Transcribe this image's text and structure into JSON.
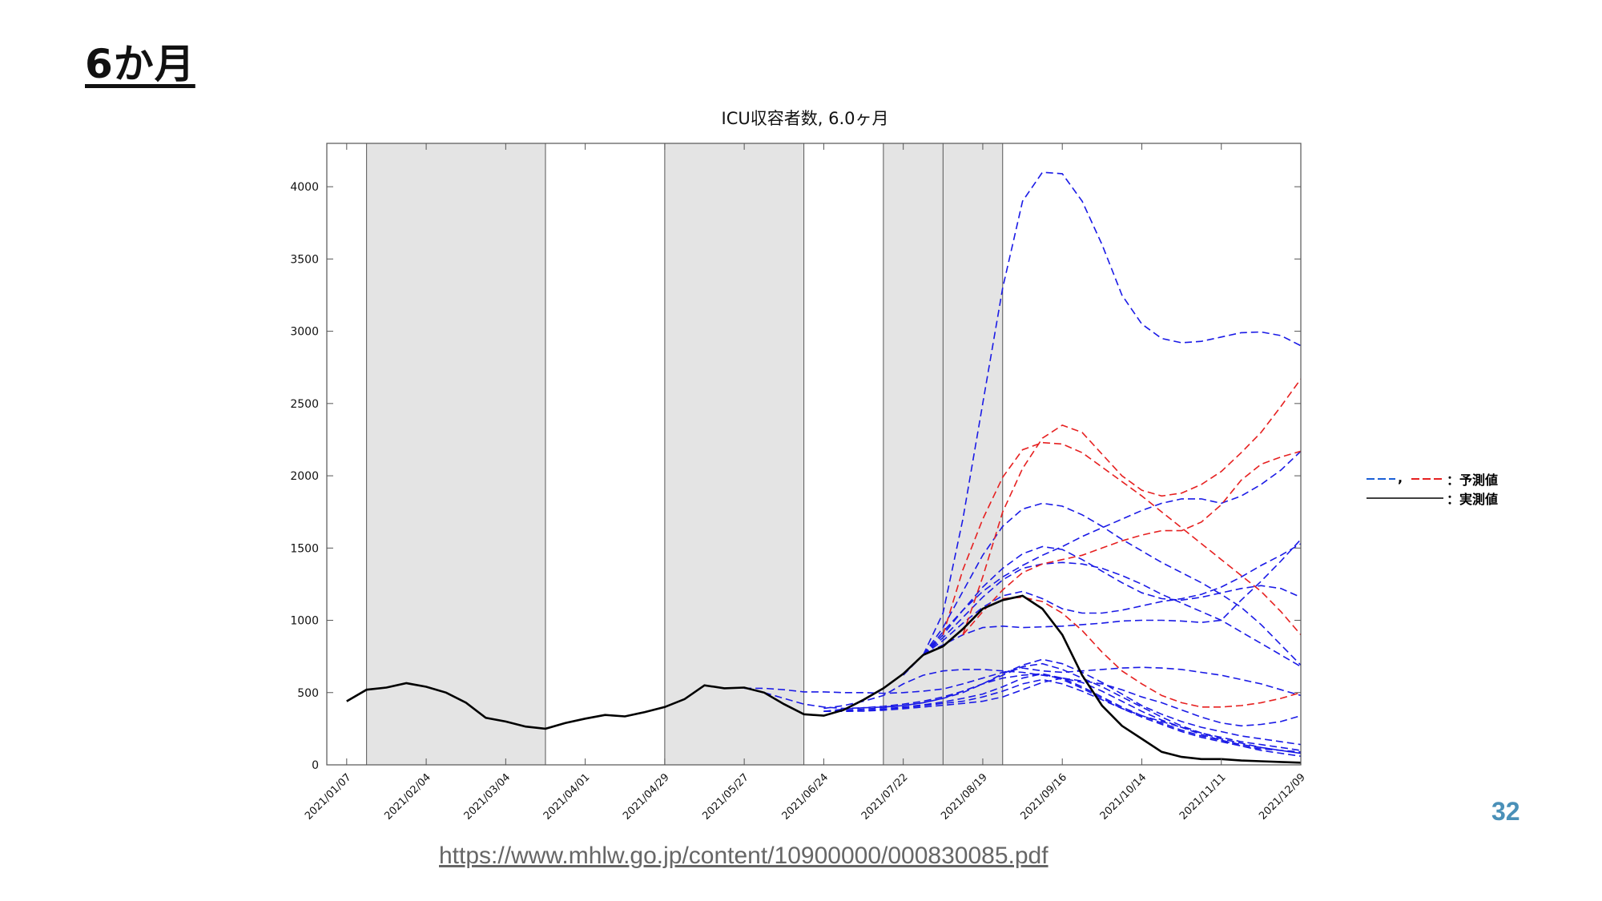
{
  "slide": {
    "title": "6か月",
    "page_number": "32",
    "source_url": "https://www.mhlw.go.jp/content/10900000/000830085.pdf"
  },
  "legend": {
    "predicted_prefix": "—–，—–",
    "predicted_label": "：予測値",
    "actual_label": "：実測値"
  },
  "colors": {
    "predicted_blue": "#1a1ae6",
    "predicted_red": "#e62020",
    "actual": "#000000",
    "shade": "#e4e4e4"
  },
  "chart_data": {
    "type": "line",
    "title": "ICU収容者数, 6.0ヶ月",
    "xlabel": "",
    "ylabel": "",
    "x_tick_labels": [
      "2021/01/07",
      "2021/02/04",
      "2021/03/04",
      "2021/04/01",
      "2021/04/29",
      "2021/05/27",
      "2021/06/24",
      "2021/07/22",
      "2021/08/19",
      "2021/09/16",
      "2021/10/14",
      "2021/11/11",
      "2021/12/09"
    ],
    "y_ticks": [
      0,
      500,
      1000,
      1500,
      2000,
      2500,
      3000,
      3500,
      4000
    ],
    "ylim": [
      0,
      4300
    ],
    "xlim_weeks": [
      -1,
      48
    ],
    "shaded_periods_weeks": [
      [
        1,
        10
      ],
      [
        16,
        23
      ],
      [
        27,
        33
      ]
    ],
    "vertical_lines_weeks": [
      1,
      10,
      16,
      23,
      27,
      30,
      33
    ],
    "grid": false,
    "legend_position": "right",
    "actual": {
      "name": "実測値",
      "weeks": [
        0,
        1,
        2,
        3,
        4,
        5,
        6,
        7,
        8,
        9,
        10,
        11,
        12,
        13,
        14,
        15,
        16,
        17,
        18,
        19,
        20,
        21,
        22,
        23,
        24,
        25,
        26,
        27,
        28,
        29,
        30,
        31,
        32,
        33,
        34,
        35,
        36,
        37,
        38,
        39,
        40,
        41,
        42,
        43,
        44,
        45,
        46,
        47,
        48
      ],
      "values": [
        440,
        520,
        535,
        565,
        540,
        500,
        430,
        325,
        300,
        265,
        250,
        290,
        320,
        345,
        335,
        365,
        400,
        455,
        550,
        530,
        535,
        500,
        420,
        350,
        340,
        380,
        450,
        530,
        630,
        760,
        820,
        940,
        1080,
        1140,
        1170,
        1080,
        900,
        620,
        410,
        270,
        180,
        90,
        55,
        40,
        40,
        30,
        25,
        20,
        15
      ]
    },
    "predictions": [
      {
        "name": "予測値",
        "color": "blue",
        "weeks": [
          29,
          30,
          31,
          32,
          33,
          34,
          35,
          36,
          37,
          38,
          39,
          40,
          41,
          42,
          43,
          44,
          45,
          46,
          47,
          48
        ],
        "values": [
          760,
          1050,
          1700,
          2500,
          3300,
          3900,
          4100,
          4090,
          3900,
          3600,
          3250,
          3050,
          2950,
          2920,
          2930,
          2960,
          2990,
          2995,
          2970,
          2900
        ]
      },
      {
        "name": "予測値",
        "color": "blue",
        "weeks": [
          29,
          30,
          31,
          32,
          33,
          34,
          35,
          36,
          37,
          38,
          39,
          40,
          41,
          42,
          43,
          44,
          45,
          46,
          47,
          48
        ],
        "values": [
          760,
          950,
          1200,
          1450,
          1650,
          1770,
          1810,
          1790,
          1730,
          1650,
          1560,
          1480,
          1400,
          1330,
          1260,
          1180,
          1090,
          970,
          830,
          690
        ]
      },
      {
        "name": "予測値",
        "color": "blue",
        "weeks": [
          29,
          30,
          31,
          32,
          33,
          34,
          35,
          36,
          37,
          38,
          39,
          40,
          41,
          42,
          43,
          44,
          45,
          46,
          47,
          48
        ],
        "values": [
          760,
          920,
          1070,
          1200,
          1300,
          1380,
          1450,
          1510,
          1580,
          1640,
          1700,
          1760,
          1810,
          1840,
          1840,
          1810,
          1860,
          1940,
          2040,
          2170
        ]
      },
      {
        "name": "予測値",
        "color": "blue",
        "weeks": [
          29,
          30,
          31,
          32,
          33,
          34,
          35,
          36,
          37,
          38,
          39,
          40,
          41,
          42,
          43,
          44,
          45,
          46,
          47,
          48
        ],
        "values": [
          760,
          900,
          1070,
          1230,
          1360,
          1460,
          1510,
          1490,
          1420,
          1340,
          1260,
          1190,
          1150,
          1140,
          1160,
          1190,
          1220,
          1240,
          1220,
          1160
        ]
      },
      {
        "name": "予測値",
        "color": "blue",
        "weeks": [
          29,
          30,
          31,
          32,
          33,
          34,
          35,
          36,
          37,
          38,
          39,
          40,
          41,
          42,
          43,
          44,
          45,
          46,
          47,
          48
        ],
        "values": [
          760,
          880,
          1020,
          1160,
          1280,
          1360,
          1390,
          1400,
          1390,
          1360,
          1310,
          1250,
          1180,
          1120,
          1060,
          1000,
          920,
          840,
          760,
          680
        ]
      },
      {
        "name": "予測値",
        "color": "blue",
        "weeks": [
          29,
          30,
          31,
          32,
          33,
          34,
          35,
          36,
          37,
          38,
          39,
          40,
          41,
          42,
          43,
          44,
          45,
          46,
          47,
          48
        ],
        "values": [
          760,
          860,
          980,
          1090,
          1170,
          1200,
          1150,
          1080,
          1050,
          1050,
          1070,
          1100,
          1130,
          1150,
          1180,
          1230,
          1300,
          1380,
          1450,
          1530
        ]
      },
      {
        "name": "予測値",
        "color": "blue",
        "weeks": [
          28,
          29,
          30,
          31,
          32,
          33,
          34,
          35,
          36,
          37,
          38,
          39,
          40,
          41,
          42,
          43,
          44,
          45,
          46,
          47,
          48
        ],
        "values": [
          620,
          760,
          830,
          900,
          950,
          960,
          950,
          955,
          960,
          970,
          980,
          995,
          1000,
          1000,
          995,
          985,
          1000,
          1140,
          1270,
          1410,
          1560
        ]
      },
      {
        "name": "予測値",
        "color": "blue",
        "weeks": [
          24,
          25,
          26,
          27,
          28,
          29,
          30,
          31,
          32,
          33,
          34,
          35,
          36,
          37,
          38,
          39,
          40,
          41,
          42,
          43,
          44,
          45,
          46,
          47,
          48
        ],
        "values": [
          390,
          410,
          440,
          480,
          560,
          620,
          650,
          660,
          660,
          650,
          640,
          620,
          600,
          580,
          560,
          520,
          470,
          430,
          380,
          330,
          290,
          270,
          280,
          300,
          340
        ]
      },
      {
        "name": "予測値",
        "color": "blue",
        "weeks": [
          20,
          21,
          22,
          23,
          24,
          25,
          26,
          27,
          28,
          29,
          30,
          31,
          32,
          33,
          34,
          35,
          36,
          37,
          38,
          39,
          40,
          41,
          42,
          43,
          44,
          45,
          46,
          47,
          48
        ],
        "values": [
          530,
          530,
          520,
          505,
          505,
          500,
          500,
          495,
          500,
          510,
          525,
          560,
          600,
          640,
          670,
          650,
          640,
          650,
          660,
          670,
          675,
          670,
          660,
          640,
          620,
          590,
          560,
          520,
          480
        ]
      },
      {
        "name": "予測値",
        "color": "blue",
        "weeks": [
          21,
          22,
          23,
          24,
          25,
          26,
          27,
          28,
          29,
          30,
          31,
          32,
          33,
          34,
          35,
          36,
          37,
          38,
          39,
          40,
          41,
          42,
          43,
          44,
          45,
          46,
          47,
          48
        ],
        "values": [
          500,
          460,
          420,
          400,
          390,
          395,
          400,
          410,
          430,
          460,
          500,
          560,
          630,
          690,
          730,
          700,
          640,
          570,
          490,
          410,
          350,
          300,
          260,
          230,
          200,
          180,
          160,
          140
        ]
      },
      {
        "name": "予測値",
        "color": "blue",
        "weeks": [
          24,
          25,
          26,
          27,
          28,
          29,
          30,
          31,
          32,
          33,
          34,
          35,
          36,
          37,
          38,
          39,
          40,
          41,
          42,
          43,
          44,
          45,
          46,
          47,
          48
        ],
        "values": [
          370,
          385,
          395,
          405,
          420,
          440,
          470,
          510,
          560,
          620,
          680,
          700,
          660,
          600,
          540,
          470,
          400,
          330,
          270,
          220,
          180,
          150,
          120,
          100,
          80
        ]
      },
      {
        "name": "予測値",
        "color": "blue",
        "weeks": [
          24,
          25,
          26,
          27,
          28,
          29,
          30,
          31,
          32,
          33,
          34,
          35,
          36,
          37,
          38,
          39,
          40,
          41,
          42,
          43,
          44,
          45,
          46,
          47,
          48
        ],
        "values": [
          370,
          375,
          385,
          395,
          410,
          430,
          460,
          510,
          560,
          600,
          620,
          630,
          590,
          530,
          460,
          390,
          330,
          280,
          230,
          190,
          160,
          130,
          110,
          100,
          90
        ]
      },
      {
        "name": "予測値",
        "color": "blue",
        "weeks": [
          24,
          25,
          26,
          27,
          28,
          29,
          30,
          31,
          32,
          33,
          34,
          35,
          36,
          37,
          38,
          39,
          40,
          41,
          42,
          43,
          44,
          45,
          46,
          47,
          48
        ],
        "values": [
          370,
          370,
          375,
          385,
          400,
          415,
          435,
          460,
          490,
          540,
          600,
          630,
          600,
          540,
          470,
          400,
          340,
          290,
          240,
          200,
          170,
          140,
          120,
          100,
          80
        ]
      },
      {
        "name": "予測値",
        "color": "blue",
        "weeks": [
          24,
          25,
          26,
          27,
          28,
          29,
          30,
          31,
          32,
          33,
          34,
          35,
          36,
          37,
          38,
          39,
          40,
          41,
          42,
          43,
          44,
          45,
          46,
          47,
          48
        ],
        "values": [
          370,
          370,
          375,
          385,
          395,
          410,
          425,
          440,
          470,
          510,
          560,
          590,
          560,
          510,
          450,
          390,
          340,
          300,
          260,
          220,
          190,
          160,
          140,
          120,
          100
        ]
      },
      {
        "name": "予測値",
        "color": "blue",
        "weeks": [
          24,
          25,
          26,
          27,
          28,
          29,
          30,
          31,
          32,
          33,
          34,
          35,
          36,
          37,
          38,
          39,
          40,
          41,
          42,
          43,
          44,
          45,
          46,
          47,
          48
        ],
        "values": [
          370,
          370,
          372,
          378,
          388,
          400,
          412,
          425,
          440,
          470,
          520,
          570,
          600,
          570,
          510,
          440,
          370,
          310,
          260,
          210,
          170,
          130,
          100,
          80,
          60
        ]
      },
      {
        "name": "予測値",
        "color": "red",
        "weeks": [
          31,
          32,
          33,
          34,
          35,
          36,
          37,
          38,
          39,
          40,
          41,
          42,
          43,
          44,
          45,
          46,
          47,
          48
        ],
        "values": [
          900,
          1300,
          1750,
          2050,
          2260,
          2350,
          2300,
          2150,
          2000,
          1900,
          1860,
          1880,
          1940,
          2030,
          2160,
          2300,
          2480,
          2670
        ]
      },
      {
        "name": "予測値",
        "color": "red",
        "weeks": [
          30,
          31,
          32,
          33,
          34,
          35,
          36,
          37,
          38,
          39,
          40,
          41,
          42,
          43,
          44,
          45,
          46,
          47,
          48
        ],
        "values": [
          900,
          1350,
          1700,
          1990,
          2180,
          2230,
          2220,
          2160,
          2060,
          1960,
          1860,
          1750,
          1640,
          1530,
          1420,
          1310,
          1200,
          1060,
          900
        ]
      },
      {
        "name": "予測値",
        "color": "red",
        "weeks": [
          31,
          32,
          33,
          34,
          35,
          36,
          37,
          38,
          39,
          40,
          41,
          42,
          43,
          44,
          45,
          46,
          47,
          48
        ],
        "values": [
          900,
          1060,
          1210,
          1330,
          1390,
          1420,
          1450,
          1500,
          1550,
          1590,
          1620,
          1620,
          1680,
          1800,
          1970,
          2080,
          2130,
          2170
        ]
      },
      {
        "name": "予測値",
        "color": "red",
        "weeks": [
          33,
          34,
          35,
          36,
          37,
          38,
          39,
          40,
          41,
          42,
          43,
          44,
          45,
          46,
          47,
          48
        ],
        "values": [
          1150,
          1160,
          1130,
          1050,
          930,
          780,
          650,
          560,
          480,
          430,
          400,
          400,
          410,
          430,
          460,
          500
        ]
      }
    ]
  }
}
